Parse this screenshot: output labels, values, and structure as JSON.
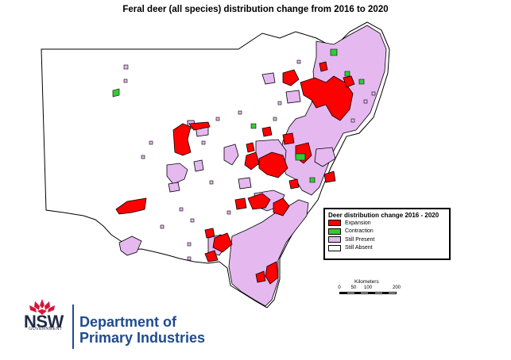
{
  "title": "Feral deer (all species) distribution change from 2016 to 2020",
  "legend": {
    "title": "Deer distribution change 2016 - 2020",
    "items": [
      {
        "label": "Expansion",
        "color": "#ff0000"
      },
      {
        "label": "Contraction",
        "color": "#33cc33"
      },
      {
        "label": "Still Present",
        "color": "#e6b8f0"
      },
      {
        "label": "Still Absent",
        "color": "#ffffff"
      }
    ]
  },
  "scale": {
    "title": "Kilometers",
    "ticks": [
      "0",
      "50",
      "100",
      "200"
    ]
  },
  "branding": {
    "nsw": "NSW",
    "government": "GOVERNMENT",
    "department_line1": "Department of",
    "department_line2": "Primary Industries"
  },
  "colors": {
    "expansion": "#ff0000",
    "contraction": "#33cc33",
    "present": "#e6b8f0",
    "absent": "#ffffff",
    "outline": "#000000",
    "waratah_red": "#d7153a",
    "brand_blue": "#1f4b8f"
  }
}
